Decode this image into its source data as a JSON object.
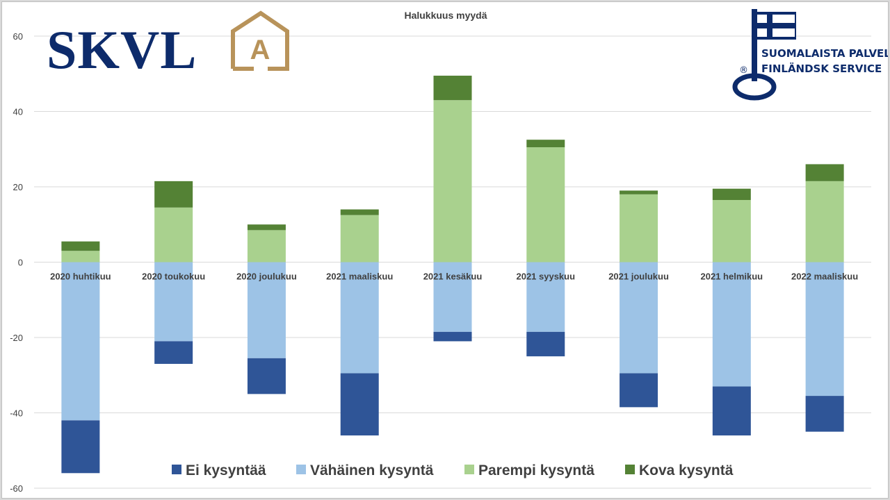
{
  "logos": {
    "skvl_text": "SKVL",
    "skvl_emblem_letter": "A",
    "key_line1": "SUOMALAISTA PALVELUA",
    "key_line2": "FINLÄNDSK SERVICE",
    "registered_mark": "®"
  },
  "colors": {
    "ei": "#2f5597",
    "vahainen": "#9dc3e6",
    "parempi": "#a9d18e",
    "kova": "#548235",
    "skvl_navy": "#0d2b6b",
    "skvl_gold": "#b8935a"
  },
  "chart_data": {
    "type": "bar",
    "stacked": true,
    "title": "Halukkuus myydä",
    "categories": [
      "2020 huhtikuu",
      "2020 toukokuu",
      "2020 joulukuu",
      "2021 maaliskuu",
      "2021 kesäkuu",
      "2021 syyskuu",
      "2021 joulukuu",
      "2021 helmikuu",
      "2022 maaliskuu"
    ],
    "ylim": [
      -60,
      60
    ],
    "yticks": [
      -60,
      -40,
      -20,
      0,
      20,
      40,
      60
    ],
    "grid": true,
    "legend_position": "bottom",
    "series": [
      {
        "name": "Ei kysyntää",
        "key": "ei",
        "values": [
          -14,
          -6,
          -9.5,
          -16.5,
          -2.5,
          -6.5,
          -9,
          -13,
          -9.5
        ]
      },
      {
        "name": "Vähäinen kysyntä",
        "key": "vahainen",
        "values": [
          -42,
          -21,
          -25.5,
          -29.5,
          -18.5,
          -18.5,
          -29.5,
          -33,
          -35.5
        ]
      },
      {
        "name": "Parempi kysyntä",
        "key": "parempi",
        "values": [
          3,
          14.5,
          8.5,
          12.5,
          43,
          30.5,
          18,
          16.5,
          21.5
        ]
      },
      {
        "name": "Kova kysyntä",
        "key": "kova",
        "values": [
          2.5,
          7,
          1.5,
          1.5,
          6.5,
          2,
          1,
          3,
          4.5
        ]
      }
    ]
  }
}
